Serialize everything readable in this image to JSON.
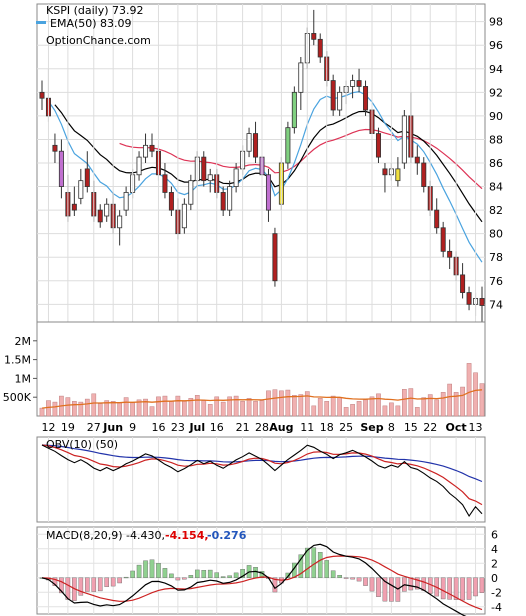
{
  "chart_data": {
    "type": "candlestick",
    "legend": {
      "price_label": "KSPI (daily) 73.92",
      "ema_label": "EMA(50) 83.09",
      "source": "OptionChance.com",
      "ema_color": "#4aa3df"
    },
    "x_ticks": [
      "12",
      "19",
      "27",
      "Jun",
      "9",
      "16",
      "23",
      "Jul",
      "16",
      "21",
      "28",
      "Aug",
      "11",
      "18",
      "25",
      "Sep",
      "8",
      "15",
      "22",
      "Oct",
      "13"
    ],
    "x_ticks_bold": [
      "Jun",
      "Jul",
      "Aug",
      "Sep",
      "Oct"
    ],
    "price_axis": {
      "ticks": [
        "98",
        "96",
        "94",
        "92",
        "90",
        "88",
        "86",
        "84",
        "82",
        "80",
        "78",
        "76",
        "74"
      ],
      "min": 72.5,
      "max": 99.5
    },
    "volume_axis": {
      "ticks": [
        "2M",
        "1.5M",
        "1M",
        "500K"
      ],
      "max": 2500000
    },
    "obv_panel": {
      "label": "OBV(10) (50)"
    },
    "macd_panel": {
      "label": "MACD(8,20,9) -4.430,",
      "value_red": "-4.154,",
      "value_blue": "-0.276",
      "ticks": [
        "6",
        "4",
        "2",
        "0",
        "-2",
        "-4"
      ],
      "min": -5,
      "max": 7
    },
    "colors": {
      "up": "#ffffff",
      "down": "#b02020",
      "highlight_green": "#80d080",
      "highlight_purple": "#c070d0",
      "highlight_yellow": "#f0e040",
      "ema20": "#4aa3df",
      "ema50": "#000000",
      "ema100": "#dd3355",
      "volume": "#f0b0b0",
      "volume_avg": "#e07020"
    },
    "candles": [
      {
        "o": 92.0,
        "h": 93.0,
        "l": 90.5,
        "c": 91.5
      },
      {
        "o": 91.5,
        "h": 94.0,
        "l": 89.5,
        "c": 90.0
      },
      {
        "o": 87.5,
        "h": 88.5,
        "l": 86.0,
        "c": 87.0
      },
      {
        "o": 87.0,
        "h": 88.0,
        "l": 83.0,
        "c": 84.0
      },
      {
        "o": 83.5,
        "h": 85.0,
        "l": 81.0,
        "c": 81.5
      },
      {
        "o": 82.5,
        "h": 84.0,
        "l": 81.5,
        "c": 82.0
      },
      {
        "o": 83.0,
        "h": 85.5,
        "l": 82.5,
        "c": 84.5
      },
      {
        "o": 85.5,
        "h": 87.0,
        "l": 83.5,
        "c": 84.0
      },
      {
        "o": 83.5,
        "h": 84.5,
        "l": 81.0,
        "c": 81.5
      },
      {
        "o": 82.0,
        "h": 82.5,
        "l": 80.5,
        "c": 81.0
      },
      {
        "o": 81.5,
        "h": 83.0,
        "l": 81.0,
        "c": 82.5
      },
      {
        "o": 82.5,
        "h": 83.5,
        "l": 80.0,
        "c": 80.5
      },
      {
        "o": 80.5,
        "h": 82.0,
        "l": 79.0,
        "c": 81.5
      },
      {
        "o": 82.0,
        "h": 84.0,
        "l": 81.5,
        "c": 83.5
      },
      {
        "o": 83.5,
        "h": 85.5,
        "l": 83.0,
        "c": 85.0
      },
      {
        "o": 85.0,
        "h": 87.0,
        "l": 84.5,
        "c": 86.5
      },
      {
        "o": 86.5,
        "h": 88.5,
        "l": 86.0,
        "c": 87.5
      },
      {
        "o": 87.5,
        "h": 88.5,
        "l": 86.5,
        "c": 87.0
      },
      {
        "o": 87.0,
        "h": 87.5,
        "l": 84.5,
        "c": 85.0
      },
      {
        "o": 85.0,
        "h": 86.0,
        "l": 83.0,
        "c": 83.5
      },
      {
        "o": 83.5,
        "h": 84.0,
        "l": 81.5,
        "c": 82.0
      },
      {
        "o": 82.0,
        "h": 83.0,
        "l": 79.5,
        "c": 80.0
      },
      {
        "o": 80.5,
        "h": 83.0,
        "l": 80.0,
        "c": 82.5
      },
      {
        "o": 82.5,
        "h": 85.0,
        "l": 82.0,
        "c": 84.5
      },
      {
        "o": 84.5,
        "h": 87.0,
        "l": 84.0,
        "c": 86.5
      },
      {
        "o": 86.5,
        "h": 87.0,
        "l": 84.0,
        "c": 84.5
      },
      {
        "o": 84.5,
        "h": 85.5,
        "l": 83.5,
        "c": 85.0
      },
      {
        "o": 85.0,
        "h": 85.5,
        "l": 83.0,
        "c": 83.5
      },
      {
        "o": 83.5,
        "h": 84.0,
        "l": 81.5,
        "c": 82.0
      },
      {
        "o": 82.0,
        "h": 84.5,
        "l": 81.5,
        "c": 84.0
      },
      {
        "o": 84.0,
        "h": 86.0,
        "l": 83.5,
        "c": 85.5
      },
      {
        "o": 85.5,
        "h": 87.5,
        "l": 85.0,
        "c": 87.0
      },
      {
        "o": 87.0,
        "h": 89.0,
        "l": 86.5,
        "c": 88.5
      },
      {
        "o": 88.5,
        "h": 89.5,
        "l": 86.0,
        "c": 86.5
      },
      {
        "o": 86.5,
        "h": 87.0,
        "l": 84.5,
        "c": 85.0
      },
      {
        "o": 85.0,
        "h": 85.5,
        "l": 81.0,
        "c": 82.0
      },
      {
        "o": 80.0,
        "h": 80.5,
        "l": 75.5,
        "c": 76.0
      },
      {
        "o": 82.5,
        "h": 86.5,
        "l": 82.0,
        "c": 86.0
      },
      {
        "o": 86.0,
        "h": 89.5,
        "l": 85.5,
        "c": 89.0
      },
      {
        "o": 89.0,
        "h": 92.5,
        "l": 88.5,
        "c": 92.0
      },
      {
        "o": 92.0,
        "h": 95.0,
        "l": 90.5,
        "c": 94.5
      },
      {
        "o": 94.5,
        "h": 97.5,
        "l": 94.0,
        "c": 97.0
      },
      {
        "o": 97.0,
        "h": 99.0,
        "l": 96.0,
        "c": 96.5
      },
      {
        "o": 96.5,
        "h": 97.0,
        "l": 94.5,
        "c": 95.0
      },
      {
        "o": 95.0,
        "h": 95.5,
        "l": 92.5,
        "c": 93.0
      },
      {
        "o": 93.0,
        "h": 93.5,
        "l": 90.0,
        "c": 90.5
      },
      {
        "o": 90.5,
        "h": 92.5,
        "l": 90.0,
        "c": 92.0
      },
      {
        "o": 92.0,
        "h": 93.0,
        "l": 91.0,
        "c": 92.5
      },
      {
        "o": 92.5,
        "h": 93.5,
        "l": 91.5,
        "c": 93.0
      },
      {
        "o": 93.0,
        "h": 94.0,
        "l": 92.0,
        "c": 92.5
      },
      {
        "o": 92.5,
        "h": 93.0,
        "l": 90.0,
        "c": 90.5
      },
      {
        "o": 90.5,
        "h": 91.0,
        "l": 88.0,
        "c": 88.5
      },
      {
        "o": 88.5,
        "h": 89.0,
        "l": 86.0,
        "c": 86.5
      },
      {
        "o": 85.5,
        "h": 86.0,
        "l": 83.5,
        "c": 85.0
      },
      {
        "o": 85.0,
        "h": 86.0,
        "l": 84.5,
        "c": 85.5
      },
      {
        "o": 85.5,
        "h": 86.5,
        "l": 84.0,
        "c": 84.5
      },
      {
        "o": 86.0,
        "h": 90.5,
        "l": 85.5,
        "c": 90.0
      },
      {
        "o": 90.0,
        "h": 92.0,
        "l": 86.0,
        "c": 86.5
      },
      {
        "o": 86.5,
        "h": 87.5,
        "l": 85.0,
        "c": 86.0
      },
      {
        "o": 86.0,
        "h": 86.5,
        "l": 83.5,
        "c": 84.0
      },
      {
        "o": 84.0,
        "h": 84.5,
        "l": 81.5,
        "c": 82.0
      },
      {
        "o": 82.0,
        "h": 83.0,
        "l": 80.0,
        "c": 80.5
      },
      {
        "o": 80.5,
        "h": 81.0,
        "l": 78.0,
        "c": 78.5
      },
      {
        "o": 78.5,
        "h": 79.5,
        "l": 77.0,
        "c": 78.0
      },
      {
        "o": 78.0,
        "h": 78.5,
        "l": 76.0,
        "c": 76.5
      },
      {
        "o": 76.5,
        "h": 77.5,
        "l": 74.5,
        "c": 75.0
      },
      {
        "o": 75.0,
        "h": 75.5,
        "l": 73.5,
        "c": 74.0
      },
      {
        "o": 74.0,
        "h": 75.0,
        "l": 73.0,
        "c": 74.5
      },
      {
        "o": 74.5,
        "h": 75.5,
        "l": 72.5,
        "c": 73.9
      }
    ]
  }
}
